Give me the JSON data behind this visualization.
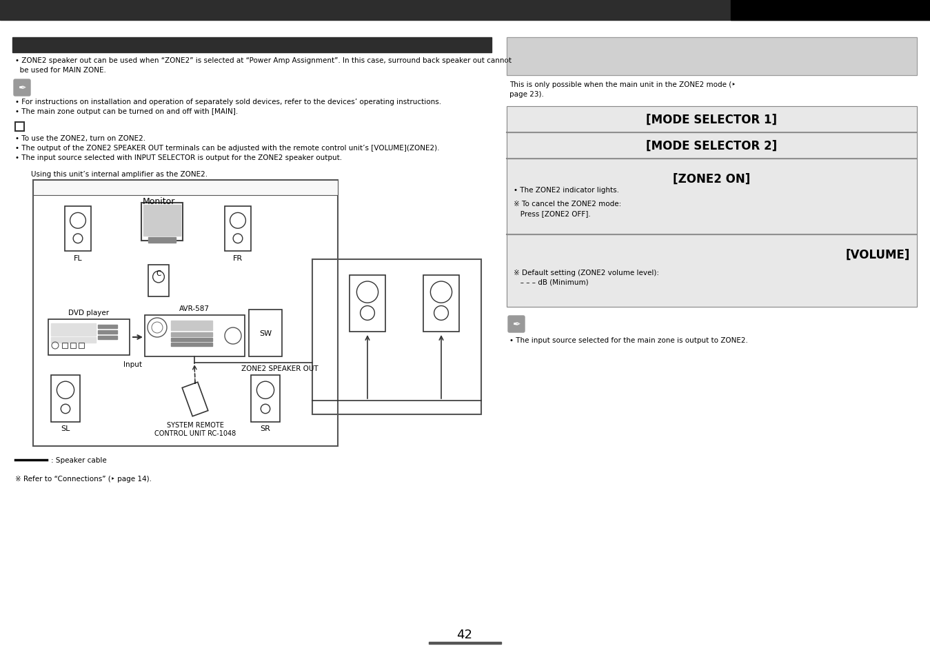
{
  "bg_color": "#ffffff",
  "page_number": "42",
  "top_bar_color": "#2d2d2d",
  "right_bar_color": "#000000",
  "left_panel": {
    "header_bg": "#2d2d2d",
    "bullet1_line1": "• ZONE2 speaker out can be used when “ZONE2” is selected at “Power Amp Assignment”. In this case, surround back speaker out cannot",
    "bullet1_line2": "  be used for MAIN ZONE.",
    "note_bullets": [
      "• For instructions on installation and operation of separately sold devices, refer to the devices’ operating instructions.",
      "• The main zone output can be turned on and off with [MAIN]."
    ],
    "zone2_bullet1": "• To use the ZONE2, turn on ZONE2.",
    "zone2_bullet2": "• The output of the ZONE2 SPEAKER OUT terminals can be adjusted with the remote control unit’s [VOLUME](ZONE2).",
    "zone2_bullet3": "• The input source selected with INPUT SELECTOR is output for the ZONE2 speaker output.",
    "diagram_note": "Using this unit’s internal amplifier as the ZONE2.",
    "speaker_cable_note": ": Speaker cable",
    "refer_note": "※ Refer to “Connections” (‣ page 14)."
  },
  "right_panel": {
    "gray_box_color": "#d0d0d0",
    "intro_text_line1": "This is only possible when the main unit in the ZONE2 mode (‣",
    "intro_text_line2": "page 23).",
    "step_bg": "#e8e8e8",
    "step_border": "#888888",
    "step1_label": "[MODE SELECTOR 1]",
    "step2_label": "[MODE SELECTOR 2]",
    "step3_label": "[ZONE2 ON]",
    "zone2_on_bullet": "• The ZONE2 indicator lights.",
    "zone2_cancel_line1": "※ To cancel the ZONE2 mode:",
    "zone2_cancel_line2": "   Press [ZONE2 OFF].",
    "step4_label": "[VOLUME]",
    "volume_note_line1": "※ Default setting (ZONE2 volume level):",
    "volume_note_line2": "   – – – dB (Minimum)",
    "input_note": "• The input source selected for the main zone is output to ZONE2."
  }
}
